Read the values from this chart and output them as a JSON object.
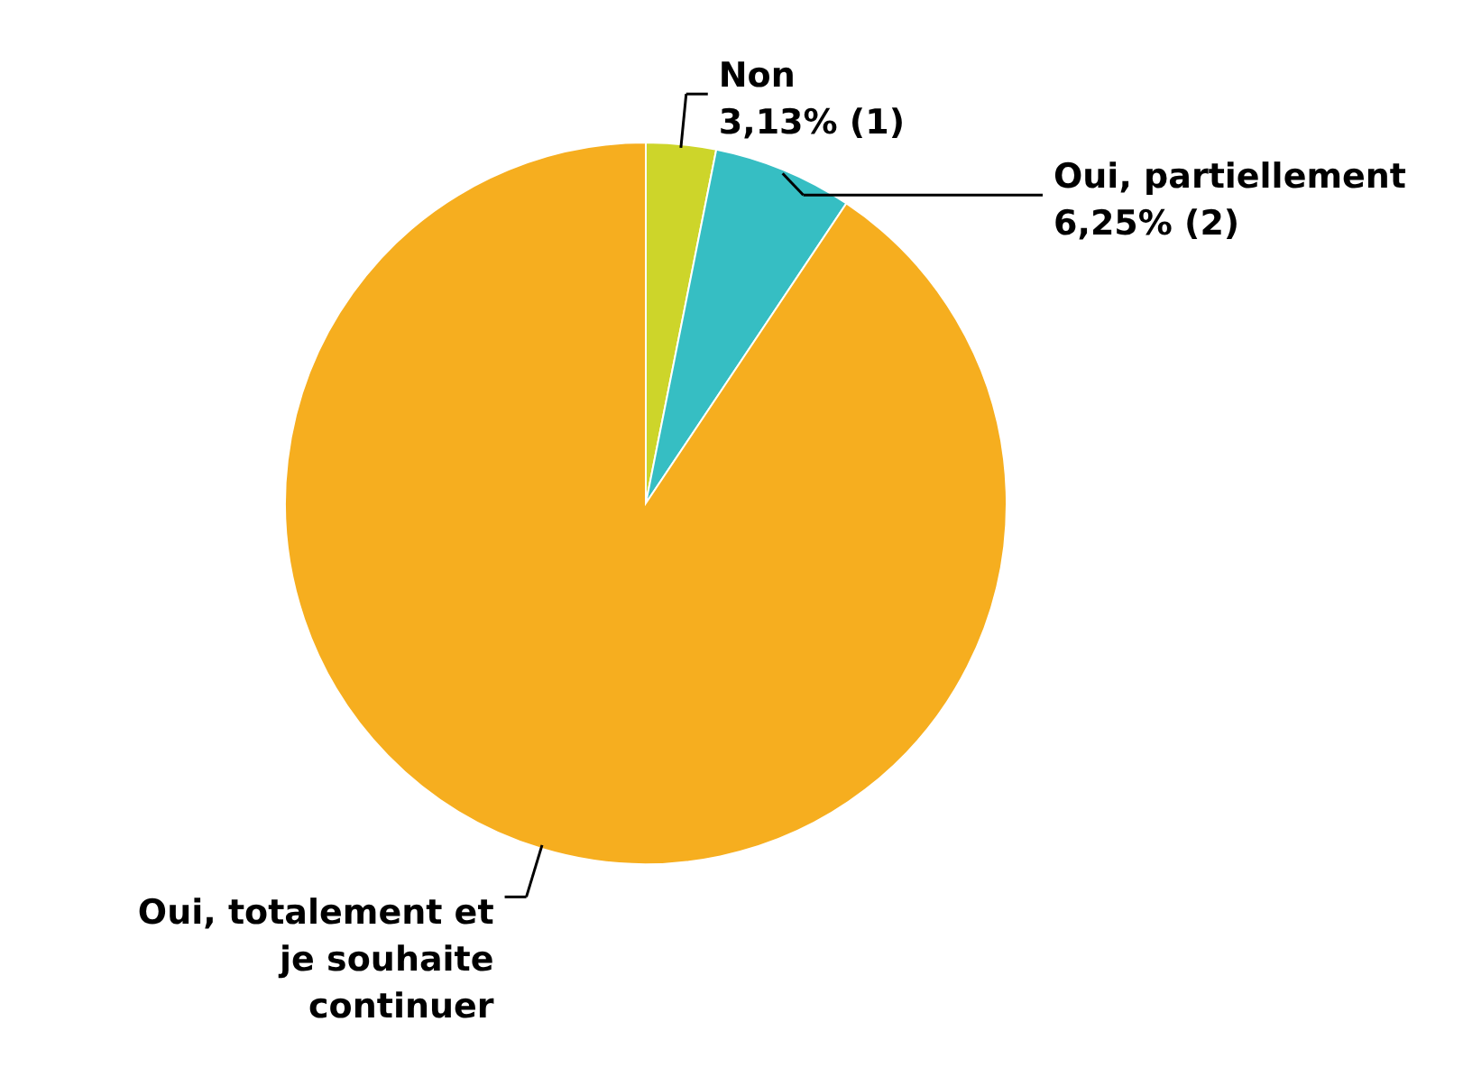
{
  "chart_data": {
    "type": "pie",
    "categories": [
      "Non",
      "Oui, partiellement",
      "Oui, totalement et je souhaite continuer"
    ],
    "values": [
      3.13,
      6.25,
      90.62
    ],
    "colors": [
      "#cdd52a",
      "#36bec3",
      "#f6ae1f"
    ],
    "value_labels": [
      "3,13% (1)",
      "6,25% (2)",
      null
    ]
  }
}
